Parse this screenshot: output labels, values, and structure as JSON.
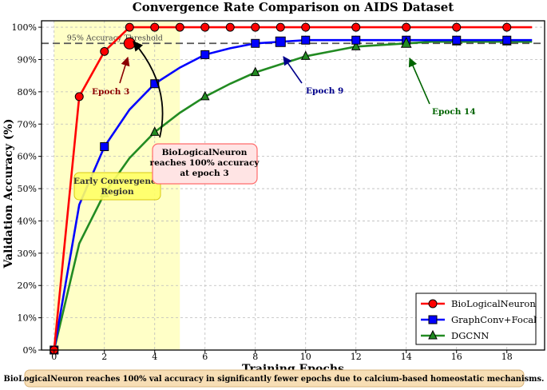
{
  "chart_data": {
    "type": "line",
    "title": "Convergence Rate Comparison on AIDS Dataset",
    "xlabel": "Training Epochs",
    "ylabel": "Validation Accuracy (%)",
    "xlim": [
      -0.5,
      19.5
    ],
    "ylim": [
      0,
      102
    ],
    "x_ticks": [
      "0",
      "2",
      "4",
      "6",
      "8",
      "10",
      "12",
      "14",
      "16",
      "18"
    ],
    "y_ticks": [
      "0%",
      "10%",
      "20%",
      "30%",
      "40%",
      "50%",
      "60%",
      "70%",
      "80%",
      "90%",
      "100%"
    ],
    "grid": true,
    "legend_position": "bottom-right",
    "threshold": {
      "value": 95,
      "label": "95% Accuracy Threshold",
      "color": "#555555"
    },
    "shaded_region": {
      "x_start": 0,
      "x_end": 5,
      "label": "Early Convergence\nRegion",
      "color": "#ffff99"
    },
    "series": [
      {
        "name": "BioLogicalNeuron",
        "color": "#ff0000",
        "marker": "circle",
        "x": [
          0,
          1,
          2,
          3,
          4,
          5,
          6,
          7,
          8,
          9,
          10,
          11,
          12,
          13,
          14,
          15,
          16,
          17,
          18,
          19
        ],
        "values": [
          0,
          78.5,
          92.5,
          100,
          100,
          100,
          100,
          100,
          100,
          100,
          100,
          100,
          100,
          100,
          100,
          100,
          100,
          100,
          100,
          100
        ]
      },
      {
        "name": "GraphConv+Focal",
        "color": "#0000ff",
        "marker": "square",
        "x": [
          0,
          1,
          2,
          3,
          4,
          5,
          6,
          7,
          8,
          9,
          10,
          11,
          12,
          13,
          14,
          15,
          16,
          17,
          18,
          19
        ],
        "values": [
          0,
          45,
          63,
          74.5,
          82.5,
          87.5,
          91.5,
          93.5,
          95,
          95.5,
          96,
          96,
          96,
          96,
          96,
          96,
          96,
          96,
          96,
          96
        ]
      },
      {
        "name": "DGCNN",
        "color": "#228b22",
        "marker": "triangle",
        "x": [
          0,
          1,
          2,
          3,
          4,
          5,
          6,
          7,
          8,
          9,
          10,
          11,
          12,
          13,
          14,
          15,
          16,
          17,
          18,
          19
        ],
        "values": [
          0,
          33,
          48.5,
          59.5,
          67.5,
          73.5,
          78.5,
          82.5,
          86,
          88.5,
          91,
          92.5,
          94,
          94.5,
          95,
          95.5,
          95.5,
          95.5,
          95.5,
          95.5
        ]
      }
    ],
    "annotations": [
      {
        "text": "Epoch 3",
        "color": "#8b0000"
      },
      {
        "text": "Epoch 9",
        "color": "#00008b"
      },
      {
        "text": "Epoch 14",
        "color": "#006400"
      },
      {
        "text": "BioLogicalNeuron\nreaches 100% accuracy\nat epoch 3"
      }
    ],
    "footer": "BioLogicalNeuron reaches 100% val accuracy in significantly fewer epochs due to calcium-based homeostatic mechanisms."
  }
}
